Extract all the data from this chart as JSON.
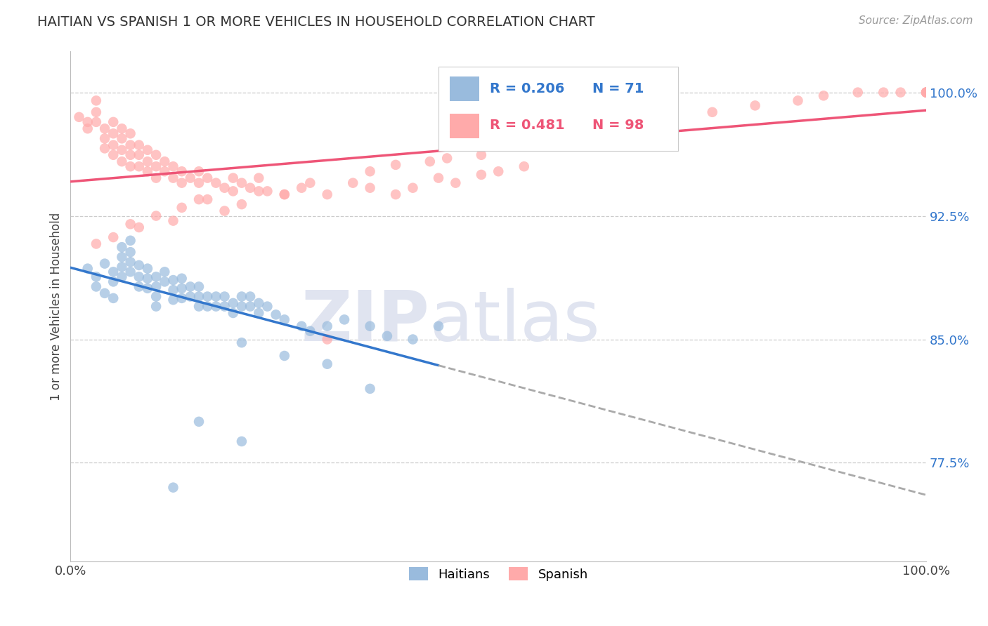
{
  "title": "HAITIAN VS SPANISH 1 OR MORE VEHICLES IN HOUSEHOLD CORRELATION CHART",
  "source": "Source: ZipAtlas.com",
  "ylabel": "1 or more Vehicles in Household",
  "xlim": [
    0.0,
    1.0
  ],
  "ylim": [
    0.715,
    1.025
  ],
  "yticks": [
    0.775,
    0.85,
    0.925,
    1.0
  ],
  "ytick_labels": [
    "77.5%",
    "85.0%",
    "92.5%",
    "100.0%"
  ],
  "xtick_labels": [
    "0.0%",
    "100.0%"
  ],
  "xticks": [
    0.0,
    1.0
  ],
  "legend_R_blue": "R = 0.206",
  "legend_N_blue": "N = 71",
  "legend_R_pink": "R = 0.481",
  "legend_N_pink": "N = 98",
  "blue_color": "#99BBDD",
  "pink_color": "#FFAAAA",
  "blue_line_color": "#3377CC",
  "pink_line_color": "#EE5577",
  "watermark_zip": "ZIP",
  "watermark_atlas": "atlas",
  "watermark_color": "#E0E4F0",
  "background_color": "#FFFFFF",
  "grid_color": "#CCCCCC",
  "blue_x": [
    0.02,
    0.03,
    0.03,
    0.04,
    0.04,
    0.05,
    0.05,
    0.05,
    0.06,
    0.06,
    0.06,
    0.06,
    0.07,
    0.07,
    0.07,
    0.07,
    0.08,
    0.08,
    0.08,
    0.09,
    0.09,
    0.09,
    0.1,
    0.1,
    0.1,
    0.1,
    0.11,
    0.11,
    0.12,
    0.12,
    0.12,
    0.13,
    0.13,
    0.13,
    0.14,
    0.14,
    0.15,
    0.15,
    0.15,
    0.16,
    0.16,
    0.17,
    0.17,
    0.18,
    0.18,
    0.19,
    0.19,
    0.2,
    0.2,
    0.21,
    0.21,
    0.22,
    0.22,
    0.23,
    0.24,
    0.25,
    0.27,
    0.28,
    0.3,
    0.32,
    0.35,
    0.37,
    0.4,
    0.43,
    0.2,
    0.25,
    0.3,
    0.35,
    0.15,
    0.2,
    0.12
  ],
  "blue_y": [
    0.893,
    0.888,
    0.882,
    0.896,
    0.878,
    0.891,
    0.885,
    0.875,
    0.906,
    0.9,
    0.894,
    0.888,
    0.91,
    0.903,
    0.897,
    0.891,
    0.895,
    0.888,
    0.882,
    0.893,
    0.887,
    0.881,
    0.888,
    0.882,
    0.876,
    0.87,
    0.891,
    0.885,
    0.886,
    0.88,
    0.874,
    0.887,
    0.881,
    0.875,
    0.882,
    0.876,
    0.882,
    0.876,
    0.87,
    0.876,
    0.87,
    0.876,
    0.87,
    0.876,
    0.87,
    0.872,
    0.866,
    0.876,
    0.87,
    0.876,
    0.87,
    0.872,
    0.866,
    0.87,
    0.865,
    0.862,
    0.858,
    0.855,
    0.858,
    0.862,
    0.858,
    0.852,
    0.85,
    0.858,
    0.848,
    0.84,
    0.835,
    0.82,
    0.8,
    0.788,
    0.76
  ],
  "pink_x": [
    0.01,
    0.02,
    0.02,
    0.03,
    0.03,
    0.03,
    0.04,
    0.04,
    0.04,
    0.05,
    0.05,
    0.05,
    0.05,
    0.06,
    0.06,
    0.06,
    0.06,
    0.07,
    0.07,
    0.07,
    0.07,
    0.08,
    0.08,
    0.08,
    0.09,
    0.09,
    0.09,
    0.1,
    0.1,
    0.1,
    0.11,
    0.11,
    0.12,
    0.12,
    0.13,
    0.13,
    0.14,
    0.15,
    0.15,
    0.16,
    0.17,
    0.18,
    0.19,
    0.2,
    0.21,
    0.22,
    0.23,
    0.25,
    0.27,
    0.3,
    0.33,
    0.35,
    0.38,
    0.4,
    0.43,
    0.45,
    0.48,
    0.5,
    0.53,
    0.3,
    0.25,
    0.2,
    0.15,
    0.22,
    0.18,
    0.12,
    0.08,
    0.05,
    0.03,
    0.07,
    0.1,
    0.13,
    0.16,
    0.19,
    0.28,
    0.35,
    0.42,
    0.48,
    0.38,
    0.44,
    0.55,
    0.6,
    0.65,
    0.7,
    0.75,
    0.8,
    0.85,
    0.88,
    0.92,
    0.95,
    0.97,
    1.0,
    1.0,
    1.0,
    1.0,
    1.0,
    1.0,
    1.0
  ],
  "pink_y": [
    0.985,
    0.982,
    0.978,
    0.995,
    0.988,
    0.982,
    0.978,
    0.972,
    0.966,
    0.982,
    0.975,
    0.968,
    0.962,
    0.978,
    0.972,
    0.965,
    0.958,
    0.975,
    0.968,
    0.962,
    0.955,
    0.968,
    0.962,
    0.955,
    0.965,
    0.958,
    0.952,
    0.962,
    0.955,
    0.948,
    0.958,
    0.952,
    0.955,
    0.948,
    0.952,
    0.945,
    0.948,
    0.952,
    0.945,
    0.948,
    0.945,
    0.942,
    0.948,
    0.945,
    0.942,
    0.948,
    0.94,
    0.938,
    0.942,
    0.938,
    0.945,
    0.942,
    0.938,
    0.942,
    0.948,
    0.945,
    0.95,
    0.952,
    0.955,
    0.85,
    0.938,
    0.932,
    0.935,
    0.94,
    0.928,
    0.922,
    0.918,
    0.912,
    0.908,
    0.92,
    0.925,
    0.93,
    0.935,
    0.94,
    0.945,
    0.952,
    0.958,
    0.962,
    0.956,
    0.96,
    0.968,
    0.972,
    0.978,
    0.985,
    0.988,
    0.992,
    0.995,
    0.998,
    1.0,
    1.0,
    1.0,
    1.0,
    1.0,
    1.0,
    1.0,
    1.0,
    1.0,
    1.0
  ]
}
